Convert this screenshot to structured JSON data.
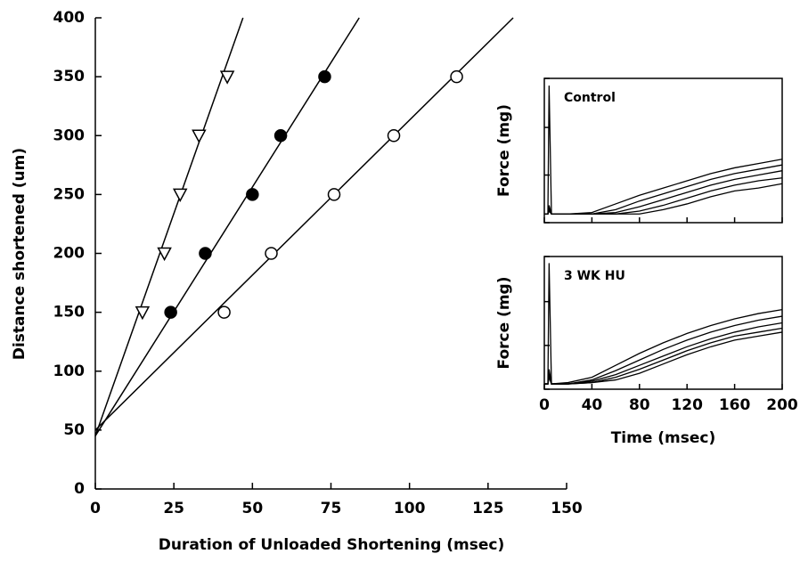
{
  "chart_data": [
    {
      "type": "scatter",
      "xlabel": "Duration of Unloaded Shortening (msec)",
      "ylabel": "Distance shortened (um)",
      "xlim": [
        0,
        150
      ],
      "ylim": [
        0,
        400
      ],
      "xticks": [
        0,
        25,
        50,
        75,
        100,
        125,
        150
      ],
      "yticks": [
        0,
        50,
        100,
        150,
        200,
        250,
        300,
        350,
        400
      ],
      "series": [
        {
          "marker": "triangle-down-open",
          "color": "#000000",
          "x": [
            15,
            22,
            27,
            33,
            42
          ],
          "values": [
            150,
            200,
            250,
            300,
            350
          ],
          "fit": {
            "x": [
              0,
              47
            ],
            "values": [
              45,
              400
            ]
          }
        },
        {
          "marker": "circle-filled",
          "color": "#000000",
          "x": [
            24,
            35,
            50,
            59,
            73
          ],
          "values": [
            150,
            200,
            250,
            300,
            350
          ],
          "fit": {
            "x": [
              0,
              84
            ],
            "values": [
              45,
              400
            ]
          }
        },
        {
          "marker": "circle-open",
          "color": "#000000",
          "x": [
            41,
            56,
            76,
            95,
            115
          ],
          "values": [
            150,
            200,
            250,
            300,
            350
          ],
          "fit": {
            "x": [
              0,
              133
            ],
            "values": [
              50,
              400
            ]
          }
        }
      ]
    },
    {
      "type": "line",
      "title": "Control",
      "ylabel": "Force (mg)",
      "xlim": [
        0,
        200
      ],
      "ylim": [
        0,
        10
      ],
      "xticks": [
        0,
        40,
        80,
        120,
        160,
        200
      ],
      "yticks": [
        0,
        3.3,
        6.6,
        10
      ],
      "show_tick_labels": false,
      "x": [
        0,
        3,
        4,
        6,
        20,
        40,
        60,
        80,
        100,
        120,
        140,
        160,
        180,
        200
      ],
      "series": [
        {
          "color": "#000000",
          "values": [
            0.6,
            0.6,
            9.5,
            0.6,
            0.6,
            0.7,
            1.3,
            1.9,
            2.4,
            2.9,
            3.4,
            3.8,
            4.1,
            4.4
          ]
        },
        {
          "color": "#000000",
          "values": [
            0.6,
            0.6,
            1.2,
            0.6,
            0.6,
            0.6,
            0.9,
            1.5,
            2.0,
            2.5,
            3.0,
            3.4,
            3.7,
            4.0
          ]
        },
        {
          "color": "#000000",
          "values": [
            0.6,
            0.6,
            1.0,
            0.6,
            0.6,
            0.6,
            0.7,
            1.1,
            1.6,
            2.1,
            2.6,
            3.0,
            3.3,
            3.6
          ]
        },
        {
          "color": "#000000",
          "values": [
            0.6,
            0.6,
            0.9,
            0.6,
            0.6,
            0.6,
            0.6,
            0.8,
            1.2,
            1.7,
            2.2,
            2.6,
            2.9,
            3.1
          ]
        },
        {
          "color": "#000000",
          "values": [
            0.6,
            0.6,
            0.8,
            0.6,
            0.6,
            0.6,
            0.6,
            0.6,
            0.9,
            1.3,
            1.8,
            2.2,
            2.4,
            2.7
          ]
        }
      ]
    },
    {
      "type": "line",
      "title": "3 WK HU",
      "ylabel": "Force (mg)",
      "xlabel": "Time (msec)",
      "xlim": [
        0,
        200
      ],
      "ylim": [
        0,
        10
      ],
      "xticks": [
        0,
        40,
        80,
        120,
        160,
        200
      ],
      "yticks": [
        0,
        3.3,
        6.6,
        10
      ],
      "show_tick_labels": true,
      "x": [
        0,
        3,
        4,
        6,
        20,
        40,
        60,
        80,
        100,
        120,
        140,
        160,
        180,
        200
      ],
      "series": [
        {
          "color": "#000000",
          "values": [
            0.4,
            0.4,
            9.5,
            0.4,
            0.5,
            0.9,
            1.8,
            2.7,
            3.5,
            4.2,
            4.8,
            5.3,
            5.7,
            6.0
          ]
        },
        {
          "color": "#000000",
          "values": [
            0.4,
            0.4,
            1.5,
            0.4,
            0.4,
            0.7,
            1.4,
            2.2,
            3.0,
            3.7,
            4.3,
            4.8,
            5.2,
            5.5
          ]
        },
        {
          "color": "#000000",
          "values": [
            0.4,
            0.4,
            1.2,
            0.4,
            0.4,
            0.6,
            1.1,
            1.8,
            2.5,
            3.2,
            3.8,
            4.3,
            4.7,
            5.0
          ]
        },
        {
          "color": "#000000",
          "values": [
            0.4,
            0.4,
            1.0,
            0.4,
            0.4,
            0.5,
            0.9,
            1.5,
            2.2,
            2.9,
            3.5,
            4.0,
            4.3,
            4.6
          ]
        },
        {
          "color": "#000000",
          "values": [
            0.4,
            0.4,
            0.9,
            0.4,
            0.4,
            0.5,
            0.7,
            1.2,
            1.9,
            2.6,
            3.2,
            3.7,
            4.0,
            4.3
          ]
        }
      ]
    }
  ]
}
